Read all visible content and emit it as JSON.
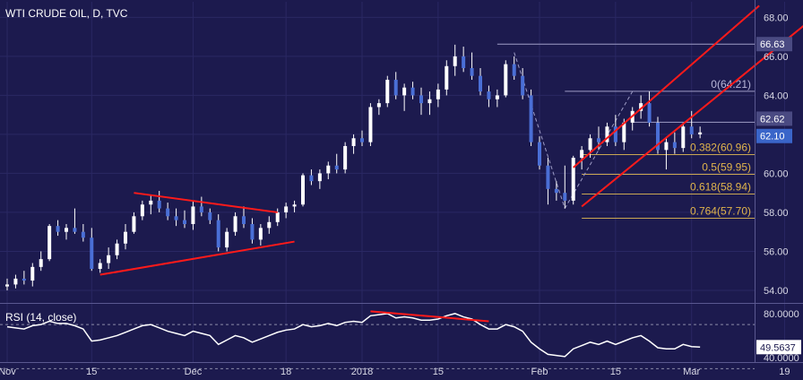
{
  "colors": {
    "background": "#1c1a4e",
    "grid": "#2a2863",
    "up_body": "#ffffff",
    "down_body": "#4a6fd6",
    "wick": "#ffffff",
    "channel": "#ff1a1a",
    "fib_line": "#c9a653",
    "fib_text": "#e0b44c",
    "level_line": "#9e9cc6",
    "axis_text": "#d9d9e6",
    "rsi_line": "#ffffff",
    "rsi_band": "#8a8aa8",
    "label_bg": "#4a4a82",
    "price_label_bg": "#3a65c9"
  },
  "chart_data": [
    {
      "type": "candlestick",
      "title": "WTI CRUDE OIL, D, TVC",
      "ylim": [
        53.4,
        68.8
      ],
      "y_ticks": [
        "54.00",
        "56.00",
        "58.00",
        "60.00",
        "62.00",
        "64.00",
        "66.00",
        "68.00"
      ],
      "x_ticks": [
        {
          "label": "Nov",
          "index": 0
        },
        {
          "label": "15",
          "index": 10
        },
        {
          "label": "Dec",
          "index": 22
        },
        {
          "label": "18",
          "index": 33
        },
        {
          "label": "2018",
          "index": 42
        },
        {
          "label": "15",
          "index": 51
        },
        {
          "label": "Feb",
          "index": 63
        },
        {
          "label": "15",
          "index": 72
        },
        {
          "label": "Mar",
          "index": 81
        },
        {
          "label": "19",
          "index": 92
        }
      ],
      "x_domain": [
        0,
        104
      ],
      "candles": [
        [
          54.2,
          54.6,
          54.0,
          54.3
        ],
        [
          54.3,
          54.8,
          54.1,
          54.6
        ],
        [
          54.6,
          55.0,
          54.3,
          54.5
        ],
        [
          54.5,
          55.4,
          54.2,
          55.2
        ],
        [
          55.2,
          56.0,
          55.0,
          55.6
        ],
        [
          55.6,
          57.4,
          55.5,
          57.3
        ],
        [
          57.3,
          57.6,
          56.8,
          57.0
        ],
        [
          57.0,
          57.4,
          56.6,
          57.2
        ],
        [
          57.2,
          58.2,
          56.9,
          57.0
        ],
        [
          57.0,
          57.4,
          56.5,
          56.7
        ],
        [
          56.7,
          57.2,
          55.0,
          55.1
        ],
        [
          55.1,
          55.6,
          54.9,
          55.4
        ],
        [
          55.4,
          56.2,
          55.1,
          55.8
        ],
        [
          55.8,
          56.6,
          55.6,
          56.4
        ],
        [
          56.4,
          57.4,
          56.1,
          57.0
        ],
        [
          57.0,
          58.0,
          56.9,
          57.8
        ],
        [
          57.8,
          58.6,
          57.6,
          58.4
        ],
        [
          58.4,
          58.9,
          57.9,
          58.6
        ],
        [
          58.6,
          59.1,
          58.0,
          58.2
        ],
        [
          58.2,
          58.5,
          57.6,
          57.8
        ],
        [
          57.8,
          58.2,
          57.3,
          57.6
        ],
        [
          57.6,
          58.1,
          57.2,
          57.4
        ],
        [
          57.4,
          58.6,
          57.1,
          58.3
        ],
        [
          58.3,
          58.8,
          57.8,
          58.0
        ],
        [
          58.0,
          58.2,
          57.4,
          57.6
        ],
        [
          57.6,
          57.9,
          56.0,
          56.2
        ],
        [
          56.2,
          57.2,
          56.0,
          57.0
        ],
        [
          57.0,
          58.0,
          56.8,
          57.8
        ],
        [
          57.8,
          58.3,
          57.2,
          57.4
        ],
        [
          57.4,
          57.7,
          56.4,
          56.6
        ],
        [
          56.6,
          57.4,
          56.3,
          57.2
        ],
        [
          57.2,
          57.8,
          56.9,
          57.5
        ],
        [
          57.5,
          58.2,
          57.3,
          58.0
        ],
        [
          58.0,
          58.5,
          57.7,
          58.3
        ],
        [
          58.3,
          58.6,
          58.0,
          58.4
        ],
        [
          58.4,
          60.0,
          58.3,
          59.9
        ],
        [
          59.9,
          60.2,
          59.4,
          59.6
        ],
        [
          59.6,
          60.2,
          59.2,
          60.0
        ],
        [
          60.0,
          60.6,
          59.7,
          60.4
        ],
        [
          60.4,
          61.0,
          60.0,
          60.2
        ],
        [
          60.2,
          61.6,
          60.0,
          61.4
        ],
        [
          61.4,
          62.0,
          61.0,
          61.8
        ],
        [
          61.8,
          62.2,
          61.4,
          61.6
        ],
        [
          61.6,
          63.6,
          61.4,
          63.4
        ],
        [
          63.4,
          63.8,
          63.0,
          63.6
        ],
        [
          63.6,
          65.0,
          63.4,
          64.8
        ],
        [
          64.8,
          65.2,
          63.8,
          64.0
        ],
        [
          64.0,
          64.6,
          63.2,
          64.4
        ],
        [
          64.4,
          64.7,
          63.8,
          64.0
        ],
        [
          64.0,
          64.4,
          63.0,
          63.6
        ],
        [
          63.6,
          64.2,
          63.0,
          63.8
        ],
        [
          63.8,
          64.6,
          63.4,
          64.3
        ],
        [
          64.3,
          65.8,
          64.0,
          65.5
        ],
        [
          65.5,
          66.6,
          65.0,
          66.0
        ],
        [
          66.0,
          66.5,
          65.2,
          65.4
        ],
        [
          65.4,
          66.2,
          64.8,
          65.0
        ],
        [
          65.0,
          65.4,
          64.0,
          64.2
        ],
        [
          64.2,
          64.5,
          63.4,
          63.8
        ],
        [
          63.8,
          64.3,
          63.4,
          64.0
        ],
        [
          64.0,
          65.8,
          63.9,
          65.6
        ],
        [
          65.6,
          66.0,
          64.8,
          65.0
        ],
        [
          65.0,
          65.4,
          63.8,
          64.0
        ],
        [
          64.0,
          64.3,
          61.4,
          61.6
        ],
        [
          61.6,
          61.9,
          60.2,
          60.4
        ],
        [
          60.4,
          60.8,
          58.4,
          59.2
        ],
        [
          59.2,
          59.6,
          58.6,
          59.0
        ],
        [
          59.0,
          60.4,
          58.2,
          58.6
        ],
        [
          58.6,
          60.9,
          58.4,
          60.8
        ],
        [
          60.8,
          61.4,
          60.2,
          61.2
        ],
        [
          61.2,
          62.0,
          60.8,
          61.8
        ],
        [
          61.8,
          62.4,
          61.2,
          61.6
        ],
        [
          61.6,
          62.6,
          61.4,
          62.4
        ],
        [
          62.4,
          63.0,
          61.4,
          61.6
        ],
        [
          61.6,
          62.8,
          61.2,
          62.6
        ],
        [
          62.6,
          63.4,
          62.2,
          63.2
        ],
        [
          63.2,
          64.0,
          62.8,
          63.6
        ],
        [
          63.6,
          64.2,
          62.4,
          62.6
        ],
        [
          62.6,
          62.9,
          61.0,
          61.2
        ],
        [
          61.2,
          61.8,
          60.2,
          61.6
        ],
        [
          61.6,
          62.1,
          61.0,
          61.3
        ],
        [
          61.3,
          62.6,
          61.1,
          62.4
        ],
        [
          62.4,
          63.2,
          61.8,
          62.0
        ],
        [
          62.0,
          62.4,
          61.8,
          62.1
        ]
      ],
      "candle_x_map": "index",
      "price_labels": [
        {
          "text": "66.63",
          "value": 66.63
        },
        {
          "text": "62.62",
          "value": 62.62
        },
        {
          "text": "62.10",
          "value": 62.1
        }
      ],
      "levels": [
        {
          "value": 66.63,
          "from": 58,
          "text": ""
        },
        {
          "value": 64.21,
          "from": 66,
          "text": "0(64.21)",
          "style": "level"
        },
        {
          "value": 62.62,
          "from": 74,
          "text": ""
        },
        {
          "value": 60.96,
          "from": 68,
          "text": "0.382(60.96)",
          "style": "fib"
        },
        {
          "value": 59.95,
          "from": 68,
          "text": "0.5(59.95)",
          "style": "fib"
        },
        {
          "value": 58.94,
          "from": 68,
          "text": "0.618(58.94)",
          "style": "fib"
        },
        {
          "value": 57.7,
          "from": 68,
          "text": "0.764(57.70)",
          "style": "fib"
        }
      ]
    },
    {
      "type": "line",
      "title": "RSI (14, close)",
      "ylim": [
        36,
        88
      ],
      "y_ticks": [
        "80.0000",
        "40.0000"
      ],
      "last_value_label": "49.5637",
      "bands": [
        70,
        30
      ],
      "values": [
        68,
        67,
        66,
        69,
        70,
        73,
        71,
        71,
        69,
        66,
        55,
        56,
        58,
        60,
        63,
        66,
        69,
        70,
        67,
        64,
        62,
        60,
        64,
        62,
        60,
        52,
        56,
        60,
        58,
        54,
        57,
        60,
        63,
        65,
        66,
        70,
        68,
        69,
        71,
        69,
        72,
        73,
        72,
        78,
        79,
        80,
        76,
        77,
        76,
        74,
        74,
        75,
        78,
        80,
        77,
        75,
        70,
        66,
        66,
        70,
        68,
        64,
        54,
        48,
        43,
        42,
        41,
        48,
        51,
        54,
        52,
        55,
        52,
        55,
        58,
        60,
        55,
        49,
        48,
        48,
        52,
        50,
        49.5637
      ]
    }
  ]
}
